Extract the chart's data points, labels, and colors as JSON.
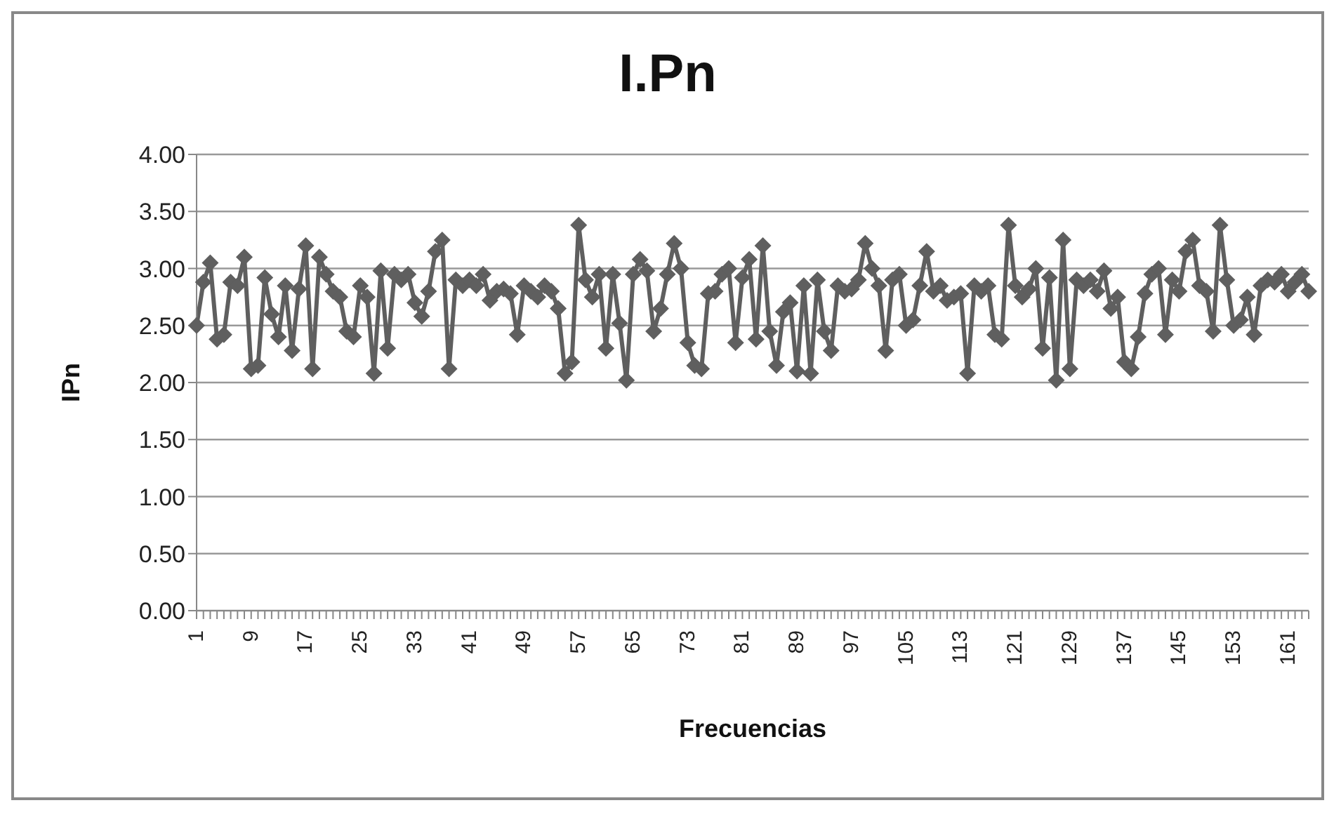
{
  "chart_data": {
    "type": "line",
    "title": "I.Pn",
    "xlabel": "Frecuencias",
    "ylabel": "IPn",
    "categories": [
      "1",
      null,
      null,
      null,
      null,
      null,
      null,
      null,
      "9",
      null,
      null,
      null,
      null,
      null,
      null,
      null,
      "17",
      null,
      null,
      null,
      null,
      null,
      null,
      null,
      "25",
      null,
      null,
      null,
      null,
      null,
      null,
      null,
      "33",
      null,
      null,
      null,
      null,
      null,
      null,
      null,
      "41",
      null,
      null,
      null,
      null,
      null,
      null,
      null,
      "49",
      null,
      null,
      null,
      null,
      null,
      null,
      null,
      "57",
      null,
      null,
      null,
      null,
      null,
      null,
      null,
      "65",
      null,
      null,
      null,
      null,
      null,
      null,
      null,
      "73",
      null,
      null,
      null,
      null,
      null,
      null,
      null,
      "81",
      null,
      null,
      null,
      null,
      null,
      null,
      null,
      "89",
      null,
      null,
      null,
      null,
      null,
      null,
      null,
      "97",
      null,
      null,
      null,
      null,
      null,
      null,
      null,
      "105",
      null,
      null,
      null,
      null,
      null,
      null,
      null,
      "113",
      null,
      null,
      null,
      null,
      null,
      null,
      null,
      "121",
      null,
      null,
      null,
      null,
      null,
      null,
      null,
      "129",
      null,
      null,
      null,
      null,
      null,
      null,
      null,
      "137",
      null,
      null,
      null,
      null,
      null,
      null,
      null,
      "145",
      null,
      null,
      null,
      null,
      null,
      null,
      null,
      "153",
      null,
      null,
      null,
      null,
      null,
      null,
      null,
      "161",
      null,
      null,
      null
    ],
    "series": [
      {
        "color": "#5f5f5f",
        "values": [
          2.5,
          2.88,
          3.05,
          2.38,
          2.42,
          2.88,
          2.85,
          3.1,
          2.12,
          2.15,
          2.92,
          2.6,
          2.4,
          2.85,
          2.28,
          2.82,
          3.2,
          2.12,
          3.1,
          2.95,
          2.8,
          2.75,
          2.45,
          2.4,
          2.85,
          2.75,
          2.08,
          2.98,
          2.3,
          2.95,
          2.9,
          2.95,
          2.7,
          2.58,
          2.8,
          3.15,
          3.25,
          2.12,
          2.9,
          2.85,
          2.9,
          2.85,
          2.95,
          2.72,
          2.8,
          2.82,
          2.78,
          2.42,
          2.85,
          2.8,
          2.75,
          2.85,
          2.8,
          2.65,
          2.08,
          2.18,
          3.38,
          2.9,
          2.75,
          2.95,
          2.3,
          2.95,
          2.52,
          2.02,
          2.95,
          3.08,
          2.98,
          2.45,
          2.65,
          2.95,
          3.22,
          3.0,
          2.35,
          2.15,
          2.12,
          2.78,
          2.8,
          2.95,
          3.0,
          2.35,
          2.92,
          3.08,
          2.38,
          3.2,
          2.45,
          2.15,
          2.62,
          2.7,
          2.1,
          2.85,
          2.08,
          2.9,
          2.45,
          2.28,
          2.85,
          2.8,
          2.82,
          2.9,
          3.22,
          3.0,
          2.85,
          2.28,
          2.9,
          2.95,
          2.5,
          2.55,
          2.85,
          3.15,
          2.8,
          2.85,
          2.72,
          2.75,
          2.78,
          2.08,
          2.85,
          2.8,
          2.85,
          2.42,
          2.38,
          3.38,
          2.85,
          2.75,
          2.82,
          3.0,
          2.3,
          2.92,
          2.02,
          3.25,
          2.12,
          2.9,
          2.85,
          2.9,
          2.8,
          2.98,
          2.65,
          2.75,
          2.18,
          2.12,
          2.4,
          2.78,
          2.95,
          3.0,
          2.42,
          2.9,
          2.8,
          3.15,
          3.25,
          2.85,
          2.8,
          2.45,
          3.38,
          2.9,
          2.5,
          2.55,
          2.75,
          2.42,
          2.85,
          2.9,
          2.88,
          2.95,
          2.8,
          2.88,
          2.95,
          2.8
        ]
      }
    ],
    "ylim": [
      0,
      4
    ],
    "yticks": [
      {
        "value": 0,
        "label": "0.00"
      },
      {
        "value": 0.5,
        "label": "0.50"
      },
      {
        "value": 1,
        "label": "1.00"
      },
      {
        "value": 1.5,
        "label": "1.50"
      },
      {
        "value": 2,
        "label": "2.00"
      },
      {
        "value": 2.5,
        "label": "2.50"
      },
      {
        "value": 3,
        "label": "3.00"
      },
      {
        "value": 3.5,
        "label": "3.50"
      },
      {
        "value": 4,
        "label": "4.00"
      }
    ],
    "grid": "y",
    "legend": false,
    "marker": "diamond",
    "line_style": "solid"
  }
}
